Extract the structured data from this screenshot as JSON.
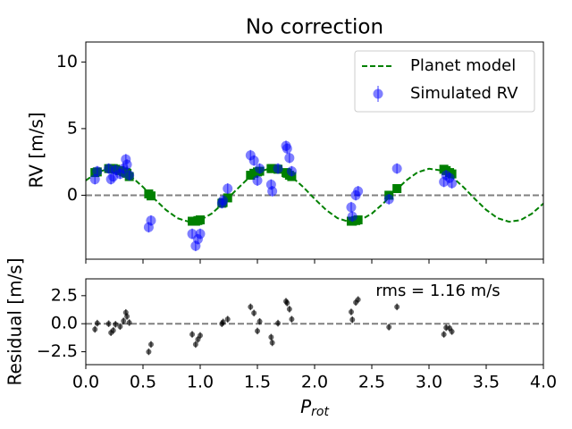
{
  "chart_data": [
    {
      "type": "scatter",
      "title": "No correction",
      "ylabel": "RV [m/s]",
      "xlim": [
        0,
        4.0
      ],
      "ylim": [
        -4.8,
        11.5
      ],
      "yticks": [
        0,
        5,
        10
      ],
      "hline": 0,
      "legend": "upper right",
      "series": [
        {
          "name": "Planet model",
          "kind": "line",
          "dashed": true,
          "color": "#008000",
          "x": [
            0,
            0.1,
            0.2,
            0.3,
            0.4,
            0.5,
            0.6,
            0.7,
            0.8,
            0.9,
            1.0,
            1.1,
            1.2,
            1.3,
            1.4,
            1.5,
            1.6,
            1.7,
            1.8,
            1.9,
            2.0,
            2.1,
            2.2,
            2.3,
            2.4,
            2.5,
            2.6,
            2.7,
            2.8,
            2.9,
            3.0,
            3.1,
            3.2,
            3.3,
            3.4,
            3.5,
            3.6,
            3.7,
            3.8,
            3.9,
            4.0
          ],
          "values": [
            1.1,
            1.72,
            1.99,
            1.87,
            1.38,
            0.62,
            -0.27,
            -1.1,
            -1.72,
            -1.99,
            -1.87,
            -1.38,
            -0.62,
            0.27,
            1.1,
            1.72,
            1.99,
            1.87,
            1.38,
            0.62,
            -0.27,
            -1.1,
            -1.72,
            -1.99,
            -1.87,
            -1.38,
            -0.62,
            0.27,
            1.1,
            1.72,
            1.99,
            1.87,
            1.38,
            0.62,
            -0.27,
            -1.1,
            -1.72,
            -1.99,
            -1.87,
            -1.38,
            -0.62
          ]
        },
        {
          "kind": "marker",
          "marker": "square",
          "color": "#008000",
          "x": [
            0.08,
            0.1,
            0.2,
            0.22,
            0.24,
            0.26,
            0.3,
            0.33,
            0.35,
            0.36,
            0.38,
            0.55,
            0.57,
            0.93,
            0.96,
            0.98,
            1.0,
            1.19,
            1.2,
            1.24,
            1.44,
            1.47,
            1.5,
            1.52,
            1.62,
            1.63,
            1.68,
            1.75,
            1.76,
            1.78,
            1.8,
            2.32,
            2.33,
            2.36,
            2.38,
            2.65,
            2.72,
            3.13,
            3.15,
            3.18,
            3.2
          ],
          "values": [
            1.7,
            1.75,
            2.0,
            2.0,
            2.0,
            1.95,
            1.85,
            1.75,
            1.7,
            1.65,
            1.4,
            0.1,
            -0.05,
            -1.95,
            -1.95,
            -1.9,
            -1.85,
            -0.6,
            -0.55,
            -0.2,
            1.5,
            1.65,
            1.75,
            1.8,
            2.0,
            2.0,
            1.95,
            1.7,
            1.65,
            1.5,
            1.4,
            -1.95,
            -1.95,
            -1.9,
            -1.85,
            0.0,
            0.5,
            1.95,
            1.85,
            1.7,
            1.6
          ]
        },
        {
          "name": "Simulated RV",
          "kind": "marker",
          "marker": "circle",
          "color": "#0000ff",
          "alpha": 0.5,
          "yerr": 0.4,
          "x": [
            0.08,
            0.1,
            0.2,
            0.22,
            0.24,
            0.26,
            0.3,
            0.33,
            0.35,
            0.36,
            0.38,
            0.55,
            0.57,
            0.93,
            0.96,
            0.98,
            1.0,
            1.19,
            1.2,
            1.24,
            1.44,
            1.47,
            1.5,
            1.52,
            1.62,
            1.63,
            1.68,
            1.75,
            1.76,
            1.78,
            1.8,
            2.32,
            2.33,
            2.36,
            2.38,
            2.65,
            2.72,
            3.13,
            3.15,
            3.18,
            3.2
          ],
          "values": [
            1.2,
            1.8,
            2.0,
            1.2,
            1.4,
            1.9,
            1.6,
            2.0,
            2.7,
            2.3,
            1.5,
            -2.4,
            -1.9,
            -2.9,
            -3.8,
            -3.3,
            -2.9,
            -0.6,
            -0.4,
            0.5,
            3.0,
            2.6,
            1.1,
            2.0,
            0.8,
            0.3,
            2.0,
            3.7,
            3.5,
            2.8,
            1.8,
            -0.9,
            -1.6,
            0.0,
            0.3,
            -0.3,
            2.0,
            1.0,
            1.5,
            1.3,
            0.9
          ]
        }
      ]
    },
    {
      "type": "scatter",
      "ylabel": "Residual [m/s]",
      "xlabel": {
        "main": "P",
        "sub": "rot"
      },
      "annotation": "rms = 1.16 m/s",
      "xlim": [
        0,
        4.0
      ],
      "ylim": [
        -3.65,
        4.0
      ],
      "hline": 0,
      "xticks": [
        {
          "value": 0,
          "label": "0.0"
        },
        0.5,
        {
          "value": 1,
          "label": "1.0"
        },
        1.5,
        {
          "value": 2,
          "label": "2.0"
        },
        2.5,
        {
          "value": 3,
          "label": "3.0"
        },
        3.5,
        {
          "value": 4,
          "label": "4.0"
        }
      ],
      "yticks": [
        {
          "value": -2.5,
          "label": "−2.5"
        },
        {
          "value": 0,
          "label": "0.0"
        },
        2.5
      ],
      "series": [
        {
          "kind": "marker",
          "marker": "circle",
          "color": "#000000",
          "alpha": 0.6,
          "yerr": 0.3,
          "x": [
            0.08,
            0.1,
            0.2,
            0.22,
            0.24,
            0.26,
            0.3,
            0.33,
            0.35,
            0.36,
            0.38,
            0.55,
            0.57,
            0.93,
            0.96,
            0.98,
            1.0,
            1.19,
            1.2,
            1.24,
            1.44,
            1.47,
            1.5,
            1.52,
            1.62,
            1.63,
            1.68,
            1.75,
            1.76,
            1.78,
            1.8,
            2.32,
            2.33,
            2.36,
            2.38,
            2.65,
            2.72,
            3.13,
            3.15,
            3.18,
            3.2
          ],
          "values": [
            -0.5,
            0.05,
            0.0,
            -0.8,
            -0.6,
            -0.05,
            -0.25,
            0.25,
            1.0,
            0.65,
            0.1,
            -2.5,
            -1.85,
            -0.95,
            -1.85,
            -1.4,
            -1.05,
            0.0,
            0.15,
            0.4,
            1.5,
            0.95,
            -0.65,
            0.2,
            -1.2,
            -1.7,
            0.05,
            2.0,
            1.85,
            1.3,
            0.4,
            1.05,
            0.35,
            1.9,
            2.15,
            -0.3,
            1.5,
            -0.95,
            -0.35,
            -0.4,
            -0.7
          ]
        }
      ]
    }
  ]
}
